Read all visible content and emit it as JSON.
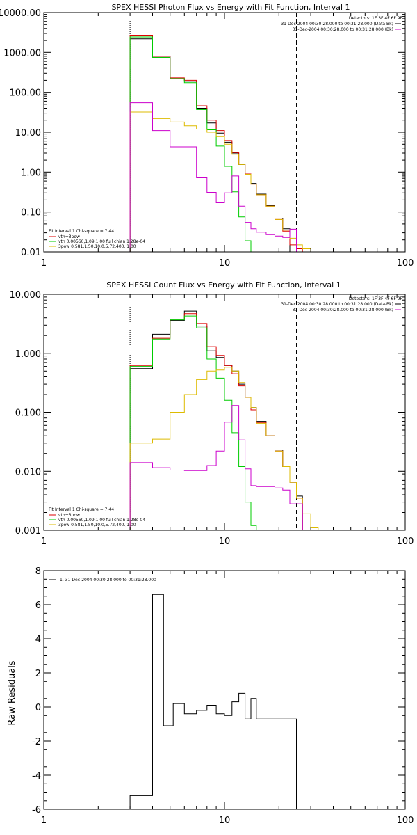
{
  "chart_data": [
    {
      "type": "line",
      "title": "SPEX HESSI Photon Flux vs Energy with Fit Function, Interval 1",
      "xlabel": "",
      "ylabel": "",
      "xscale": "log",
      "yscale": "log",
      "xlim": [
        1,
        100
      ],
      "ylim": [
        0.01,
        10000
      ],
      "x_ticks": [
        1,
        10,
        100
      ],
      "x_tick_labels": [
        "1",
        "10",
        "100"
      ],
      "y_ticks": [
        0.01,
        0.1,
        1,
        10,
        100,
        1000,
        10000
      ],
      "y_tick_labels": [
        "0.01",
        "0.10",
        "1.00",
        "10.00",
        "100.00",
        "1000.00",
        "10000.00"
      ],
      "grid": false,
      "vlines": [
        {
          "x": 3,
          "style": "dotted"
        },
        {
          "x": 25,
          "style": "dashed"
        }
      ],
      "detectors_text": "Detectors: 1F 3F 4F 6F 9F",
      "legend_top_right": [
        {
          "text": "31-Dec-2004 00:30:28.000 to 00:31:28.000 (Data-Bk)",
          "color": "#000000"
        },
        {
          "text": "31-Dec-2004 00:30:28.000 to 00:31:28.000 (Bk)",
          "color": "#cc00cc"
        }
      ],
      "legend_bottom_left": [
        {
          "text": "Fit Interval 1    Chi-square = 7.44",
          "color": null
        },
        {
          "text": "vth+3pow",
          "color": "#dd0000"
        },
        {
          "text": "vth 0.00560,1.09,1.00  full chian 1.28e-04",
          "color": "#00cc00"
        },
        {
          "text": "3pow 0.581,1.50,10.0,5.72,400.,1.00",
          "color": "#ddbb00"
        }
      ],
      "edges": [
        3,
        4,
        5,
        6,
        7,
        8,
        9,
        10,
        11,
        12,
        13,
        14,
        15,
        17,
        19,
        21,
        23,
        25,
        27,
        30
      ],
      "series": [
        {
          "name": "Data-Bk",
          "color": "#000000",
          "values": [
            2200,
            800,
            220,
            190,
            40,
            17,
            9.5,
            5.6,
            3.0,
            1.55,
            0.88,
            0.52,
            0.28,
            0.145,
            0.07,
            0.038,
            null,
            null,
            null
          ]
        },
        {
          "name": "vth+3pow",
          "color": "#dd0000",
          "values": [
            2600,
            800,
            230,
            200,
            46,
            20,
            11,
            6.2,
            3.1,
            1.6,
            0.9,
            0.5,
            0.27,
            0.14,
            0.065,
            0.033,
            0.015,
            0.012,
            null
          ]
        },
        {
          "name": "vth",
          "color": "#00cc00",
          "values": [
            2450,
            750,
            220,
            175,
            37,
            11.5,
            4.5,
            1.4,
            0.32,
            0.075,
            0.019,
            0.01,
            null,
            null,
            null,
            null,
            null,
            null,
            null
          ]
        },
        {
          "name": "3pow",
          "color": "#ddbb00",
          "values": [
            32,
            22,
            18,
            14.5,
            12,
            10,
            7.8,
            5.0,
            2.8,
            1.55,
            0.88,
            0.5,
            0.27,
            0.14,
            0.065,
            0.035,
            0.022,
            0.015,
            0.012
          ]
        },
        {
          "name": "Bk",
          "color": "#cc00cc",
          "values": [
            55,
            11,
            4.3,
            4.3,
            0.72,
            0.31,
            0.17,
            0.3,
            0.8,
            0.14,
            0.055,
            0.038,
            0.031,
            0.027,
            0.025,
            0.023,
            0.037,
            null,
            null
          ]
        }
      ]
    },
    {
      "type": "line",
      "title": "SPEX HESSI Count Flux vs Energy with Fit Function, Interval 1",
      "xlabel": "",
      "ylabel": "",
      "xscale": "log",
      "yscale": "log",
      "xlim": [
        1,
        100
      ],
      "ylim": [
        0.001,
        10
      ],
      "x_ticks": [
        1,
        10,
        100
      ],
      "x_tick_labels": [
        "1",
        "10",
        "100"
      ],
      "y_ticks": [
        0.001,
        0.01,
        0.1,
        1,
        10
      ],
      "y_tick_labels": [
        "0.001",
        "0.010",
        "0.100",
        "1.000",
        "10.000"
      ],
      "grid": false,
      "vlines": [
        {
          "x": 3,
          "style": "dotted"
        },
        {
          "x": 25,
          "style": "dashed"
        }
      ],
      "detectors_text": "Detectors: 1F 3F 4F 6F 9F",
      "legend_top_right": [
        {
          "text": "31-Dec-2004 00:30:28.000 to 00:31:28.000 (Data-Bk)",
          "color": "#000000"
        },
        {
          "text": "31-Dec-2004 00:30:28.000 to 00:31:28.000 (Bk)",
          "color": "#cc00cc"
        }
      ],
      "legend_bottom_left": [
        {
          "text": "Fit Interval 1    Chi-square = 7.44",
          "color": null
        },
        {
          "text": "vth+3pow",
          "color": "#dd0000"
        },
        {
          "text": "vth 0.00560,1.09,1.00  full chian 1.28e-04",
          "color": "#00cc00"
        },
        {
          "text": "3pow 0.581,1.50,10.0,5.72,400.,1.00",
          "color": "#ddbb00"
        }
      ],
      "edges": [
        3,
        4,
        5,
        6,
        7,
        8,
        9,
        10,
        11,
        12,
        13,
        14,
        15,
        17,
        19,
        21,
        23,
        25,
        27,
        30,
        33
      ],
      "series": [
        {
          "name": "Data-Bk",
          "color": "#000000",
          "values": [
            0.55,
            2.1,
            3.6,
            5.2,
            2.9,
            1.1,
            0.85,
            0.62,
            0.5,
            0.3,
            0.18,
            0.12,
            0.07,
            0.04,
            0.023,
            0.012,
            0.0065,
            0.0038,
            null,
            null
          ]
        },
        {
          "name": "vth+3pow",
          "color": "#dd0000",
          "values": [
            0.62,
            1.8,
            3.8,
            4.7,
            3.2,
            1.3,
            0.92,
            0.62,
            0.45,
            0.28,
            0.18,
            0.11,
            0.067,
            0.04,
            0.022,
            0.012,
            0.0065,
            0.0035,
            null,
            null
          ]
        },
        {
          "name": "vth",
          "color": "#00cc00",
          "values": [
            0.6,
            1.75,
            3.7,
            4.3,
            2.7,
            0.8,
            0.38,
            0.16,
            0.045,
            0.012,
            0.003,
            0.0012,
            null,
            null,
            null,
            null,
            null,
            null,
            null,
            null
          ]
        },
        {
          "name": "3pow",
          "color": "#ddbb00",
          "values": [
            0.03,
            0.035,
            0.1,
            0.2,
            0.36,
            0.5,
            0.52,
            0.58,
            0.5,
            0.32,
            0.18,
            0.12,
            0.065,
            0.04,
            0.022,
            0.012,
            0.0065,
            0.0035,
            0.0019,
            0.0011
          ]
        },
        {
          "name": "Bk",
          "color": "#cc00cc",
          "values": [
            0.014,
            0.0115,
            0.0105,
            0.0103,
            0.0103,
            0.0125,
            0.022,
            0.068,
            0.13,
            0.034,
            0.011,
            0.0057,
            0.0055,
            0.0055,
            0.0052,
            0.0048,
            0.0028,
            0.0028,
            null,
            null
          ]
        }
      ]
    },
    {
      "type": "line",
      "title": "",
      "xlabel": "",
      "ylabel": "Raw Residuals",
      "xscale": "log",
      "yscale": "linear",
      "xlim": [
        1,
        100
      ],
      "ylim": [
        -6,
        8
      ],
      "x_ticks": [
        1,
        10,
        100
      ],
      "x_tick_labels": [
        "1",
        "10",
        "100"
      ],
      "y_ticks": [
        -6,
        -4,
        -2,
        0,
        2,
        4,
        6,
        8
      ],
      "y_tick_labels": [
        "-6",
        "-4",
        "-2",
        "0",
        "2",
        "4",
        "6",
        "8"
      ],
      "grid": false,
      "legend": [
        {
          "text": "1. 31-Dec-2004 00:30:28.000 to 00:31:28.000",
          "color": "#000000"
        }
      ],
      "edges": [
        3,
        4,
        4.6,
        5.2,
        6,
        7,
        8,
        9,
        10,
        11,
        12,
        13,
        14,
        15,
        17,
        19,
        21,
        25
      ],
      "series": [
        {
          "name": "",
          "color": "#000000",
          "values": [
            -5.2,
            6.6,
            -1.1,
            0.2,
            -0.4,
            -0.2,
            0.1,
            -0.4,
            -0.5,
            0.3,
            0.8,
            -0.7,
            0.5,
            -0.7,
            -0.7,
            -0.7,
            -0.7
          ]
        }
      ]
    }
  ]
}
